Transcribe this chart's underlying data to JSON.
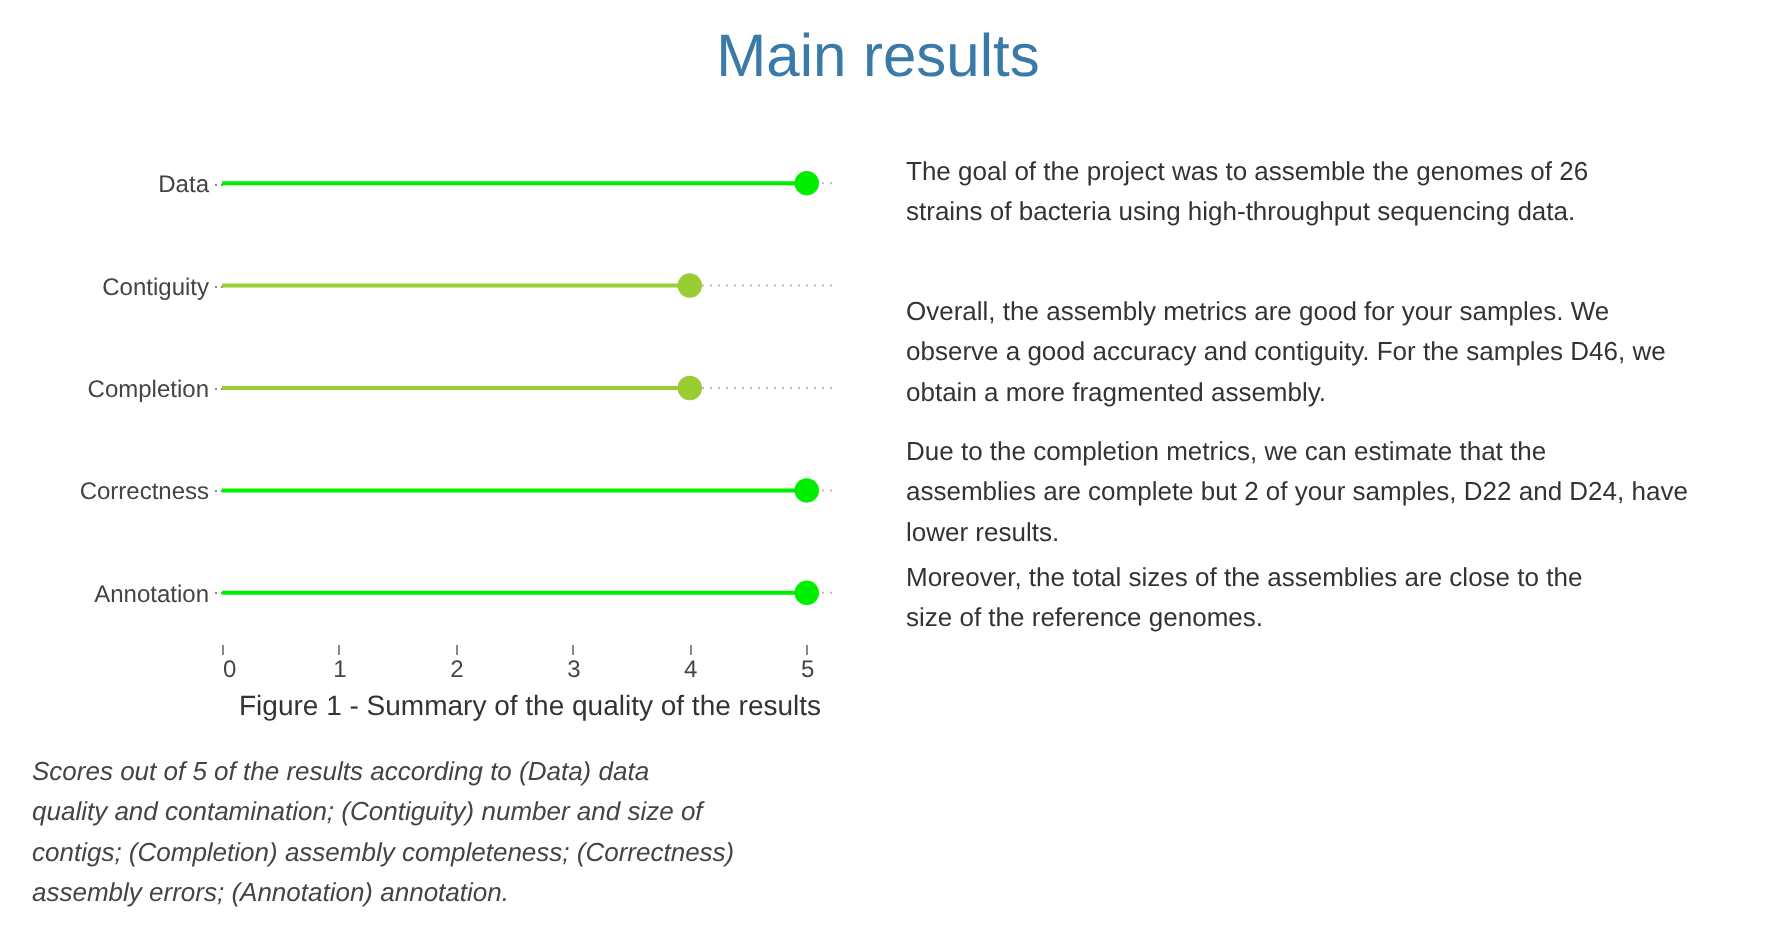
{
  "chart_data": {
    "type": "lollipop",
    "title": "Main results",
    "xlabel": "Figure 1 - Summary of the quality of the results",
    "orientation": "horizontal",
    "categories": [
      "Data",
      "Contiguity",
      "Completion",
      "Correctness",
      "Annotation"
    ],
    "values": [
      5,
      4,
      4,
      5,
      5
    ],
    "colors": [
      "#00ee00",
      "#9acd32",
      "#9acd32",
      "#00ee00",
      "#00ee00"
    ],
    "xlim": [
      0,
      5.25
    ],
    "xticks": [
      0,
      1,
      2,
      3,
      4,
      5
    ],
    "grid": "y",
    "marker": "circle",
    "annotations": [
      "The goal of the project was to assemble the genomes of 26 strains of bacteria using high-throughput sequencing data.",
      "Overall, the assembly metrics are good for your samples. We observe a good accuracy and contiguity. For the samples D46, we obtain a more fragmented assembly.",
      "Due to the completion metrics, we can estimate that the assemblies are complete but 2 of your samples, D22 and D24, have lower results.",
      "Moreover, the total sizes of the assemblies are close to the size of the reference genomes.",
      "Scores out of 5 of the results according to (Data) data quality and contamination; (Contiguity) number and size of contigs; (Completion) assembly completeness; (Correctness) assembly errors; (Annotation) annotation."
    ]
  }
}
